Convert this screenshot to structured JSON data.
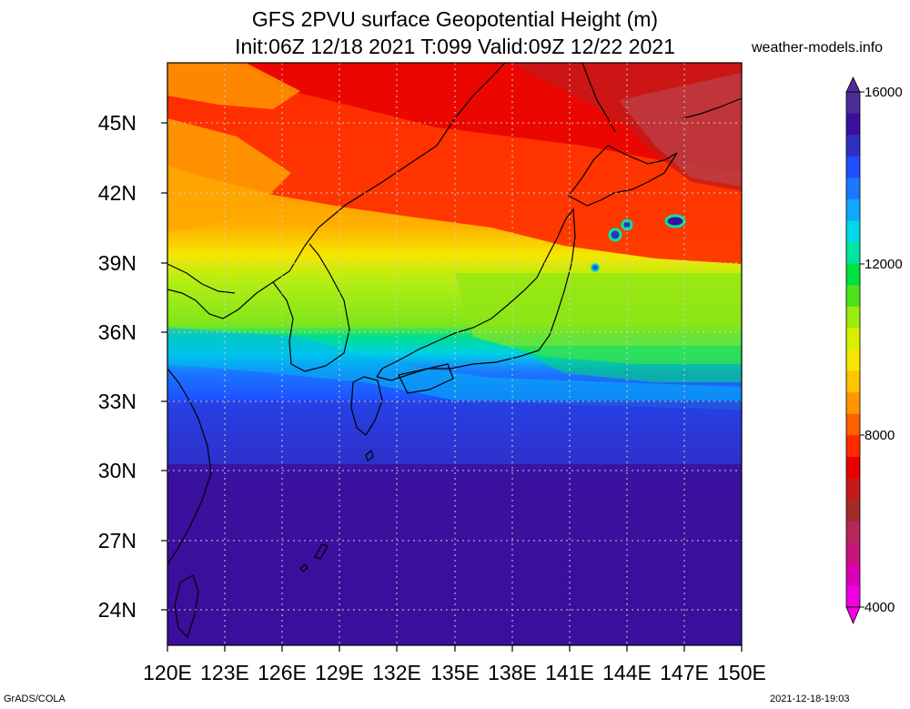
{
  "title_line1": "GFS 2PVU surface Geopotential Height (m)",
  "title_line2": "Init:06Z 12/18 2021 T:099 Valid:09Z 12/22 2021",
  "source": "weather-models.info",
  "latitude_labels": [
    "45N",
    "42N",
    "39N",
    "36N",
    "33N",
    "30N",
    "27N",
    "24N"
  ],
  "longitude_labels": [
    "120E",
    "123E",
    "126E",
    "129E",
    "132E",
    "135E",
    "138E",
    "141E",
    "144E",
    "147E",
    "150E"
  ],
  "colorbar": {
    "labels": [
      "16000",
      "12000",
      "8000",
      "4000"
    ],
    "colors": [
      "#4d2b99",
      "#3a0fa0",
      "#2f2fc2",
      "#1f50ff",
      "#1a78ff",
      "#10a8ff",
      "#00d8e8",
      "#00e6a0",
      "#00e040",
      "#4ee21a",
      "#9eeb10",
      "#d8f000",
      "#f5e600",
      "#ffc400",
      "#ff9600",
      "#ff5f00",
      "#ff2a00",
      "#e80000",
      "#c41a1a",
      "#a52a2a",
      "#b4285a",
      "#c8147d",
      "#dc00b4",
      "#f000e0"
    ]
  },
  "footer_left": "GrADS/COLA",
  "footer_right": "2021-12-18-19:03"
}
